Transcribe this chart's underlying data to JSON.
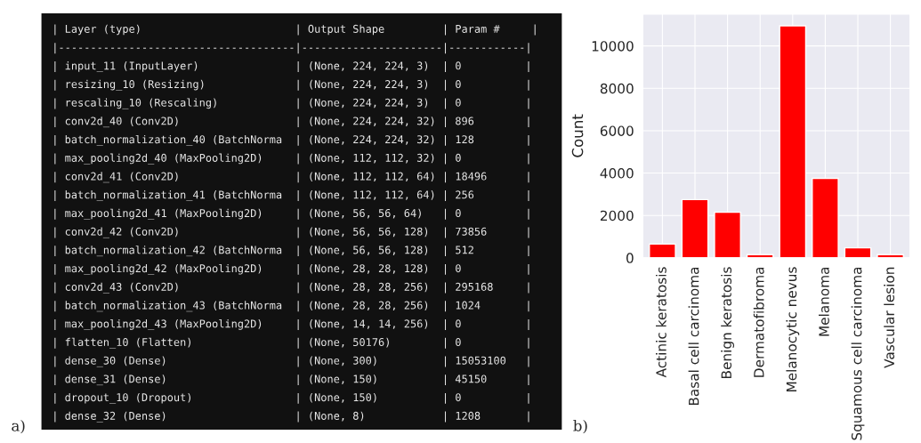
{
  "chart_data": [
    {
      "type": "other",
      "annotations": [
        "a)",
        "| Layer (type)                        | Output Shape         | Param #     |",
        "|-------------------------------------|----------------------|------------|",
        "| input_11 (InputLayer)               | (None, 224, 224, 3)  | 0          |",
        "| resizing_10 (Resizing)              | (None, 224, 224, 3)  | 0          |",
        "| rescaling_10 (Rescaling)            | (None, 224, 224, 3)  | 0          |",
        "| conv2d_40 (Conv2D)                  | (None, 224, 224, 32) | 896        |",
        "| batch_normalization_40 (BatchNorma  | (None, 224, 224, 32) | 128        |",
        "| max_pooling2d_40 (MaxPooling2D)     | (None, 112, 112, 32) | 0          |",
        "| conv2d_41 (Conv2D)                  | (None, 112, 112, 64) | 18496      |",
        "| batch_normalization_41 (BatchNorma  | (None, 112, 112, 64) | 256        |",
        "| max_pooling2d_41 (MaxPooling2D)     | (None, 56, 56, 64)   | 0          |",
        "| conv2d_42 (Conv2D)                  | (None, 56, 56, 128)  | 73856      |",
        "| batch_normalization_42 (BatchNorma  | (None, 56, 56, 128)  | 512        |",
        "| max_pooling2d_42 (MaxPooling2D)     | (None, 28, 28, 128)  | 0          |",
        "| conv2d_43 (Conv2D)                  | (None, 28, 28, 256)  | 295168     |",
        "| batch_normalization_43 (BatchNorma  | (None, 28, 28, 256)  | 1024       |",
        "| max_pooling2d_43 (MaxPooling2D)     | (None, 14, 14, 256)  | 0          |",
        "| flatten_10 (Flatten)                | (None, 50176)        | 0          |",
        "| dense_30 (Dense)                    | (None, 300)          | 15053100   |",
        "| dense_31 (Dense)                    | (None, 150)          | 45150      |",
        "| dropout_10 (Dropout)                | (None, 150)          | 0          |",
        "| dense_32 (Dense)                    | (None, 8)            | 1208       |"
      ]
    },
    {
      "type": "bar",
      "ylabel": "Count",
      "annotations": [
        "b)"
      ],
      "categories": [
        "Actinic keratosis",
        "Basal cell carcinoma",
        "Benign keratosis",
        "Dermatofibroma",
        "Melanocytic nevus",
        "Melanoma",
        "Squamous cell carcinoma",
        "Vascular lesion"
      ],
      "values": [
        650,
        2750,
        2150,
        150,
        10950,
        3750,
        470,
        150
      ],
      "color": "#ff0000",
      "ylim": [
        0,
        11500
      ],
      "yticks": [
        0,
        2000,
        4000,
        6000,
        8000,
        10000
      ],
      "grid": true
    }
  ]
}
